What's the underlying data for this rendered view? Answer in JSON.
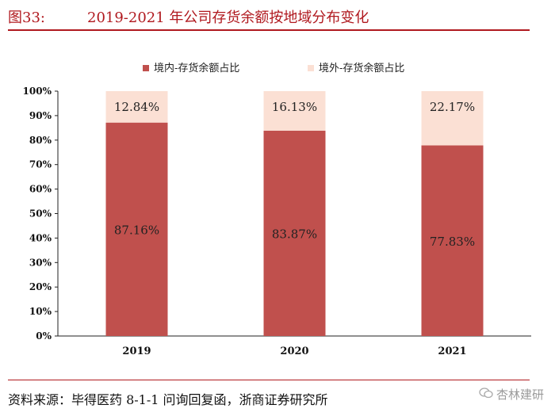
{
  "figure": {
    "number": "图33:",
    "title": "2019-2021 年公司存货余额按地域分布变化",
    "source": "资料来源：毕得医药 8-1-1 问询回复函，浙商证券研究所",
    "watermark": "杏林建研"
  },
  "colors": {
    "accent": "#b0191f",
    "domestic": "#c0504d",
    "overseas": "#fbe0d4"
  },
  "chart_data": {
    "type": "bar",
    "stacked": true,
    "categories": [
      "2019",
      "2020",
      "2021"
    ],
    "series": [
      {
        "name": "境内-存货余额占比",
        "values": [
          87.16,
          83.87,
          77.83
        ],
        "labels": [
          "87.16%",
          "83.87%",
          "77.83%"
        ]
      },
      {
        "name": "境外-存货余额占比",
        "values": [
          12.84,
          16.13,
          22.17
        ],
        "labels": [
          "12.84%",
          "16.13%",
          "22.17%"
        ]
      }
    ],
    "ylim": [
      0,
      100
    ],
    "yticks": [
      "0%",
      "10%",
      "20%",
      "30%",
      "40%",
      "50%",
      "60%",
      "70%",
      "80%",
      "90%",
      "100%"
    ],
    "legend_position": "top",
    "grid": false,
    "xlabel": "",
    "ylabel": ""
  }
}
